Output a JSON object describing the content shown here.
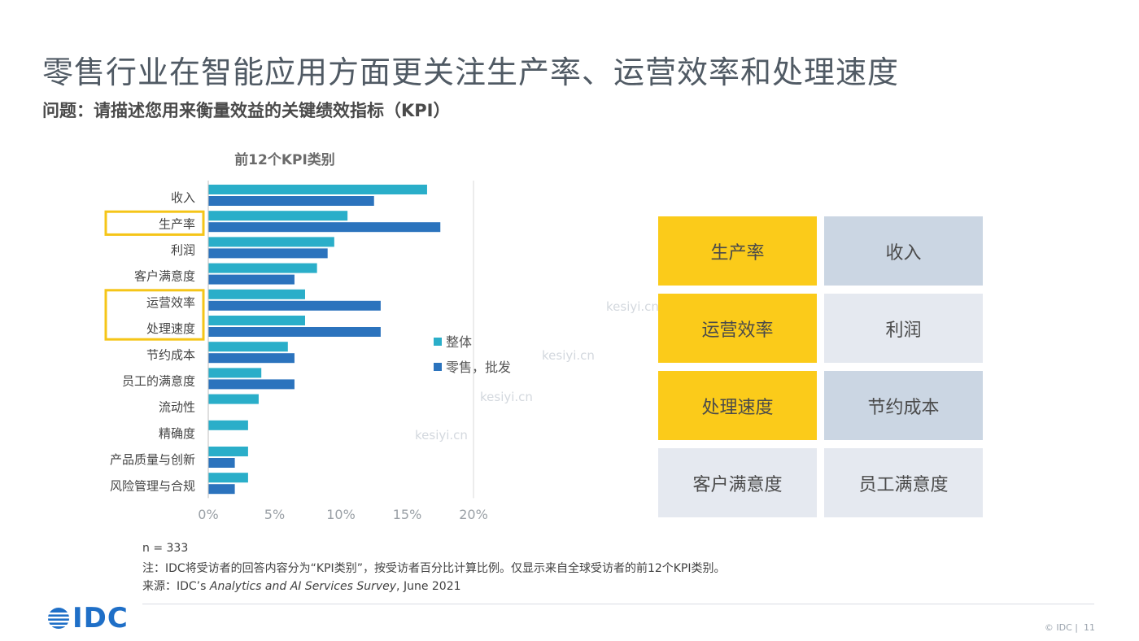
{
  "slide": {
    "title": "零售行业在智能应用方面更关注生产率、运营效率和处理速度",
    "subtitle": "问题：请描述您用来衡量效益的关键绩效指标（KPI）",
    "page_number": "11"
  },
  "chart_data": {
    "type": "bar",
    "orientation": "horizontal",
    "title": "前12个KPI类别",
    "categories": [
      "收入",
      "生产率",
      "利润",
      "客户满意度",
      "运营效率",
      "处理速度",
      "节约成本",
      "员工的满意度",
      "流动性",
      "精确度",
      "产品质量与创新",
      "风险管理与合规"
    ],
    "series": [
      {
        "name": "整体",
        "color": "#2aaec9",
        "values": [
          16.5,
          10.5,
          9.5,
          8.2,
          7.3,
          7.3,
          6.0,
          4.0,
          3.8,
          3.0,
          3.0,
          3.0
        ]
      },
      {
        "name": "零售，批发",
        "color": "#2b73bd",
        "values": [
          12.5,
          17.5,
          9.0,
          6.5,
          13.0,
          13.0,
          6.5,
          6.5,
          null,
          null,
          2.0,
          2.0
        ]
      }
    ],
    "highlighted_categories": [
      [
        "生产率"
      ],
      [
        "运营效率",
        "处理速度"
      ]
    ],
    "highlight_color": "#f5c518",
    "xlim": [
      0,
      20
    ],
    "xticks": [
      "0%",
      "5%",
      "10%",
      "15%",
      "20%"
    ],
    "legend_position": "right"
  },
  "kpi_grid": {
    "tiles": [
      {
        "label": "生产率",
        "style": "highlight"
      },
      {
        "label": "收入",
        "style": "blue"
      },
      {
        "label": "运营效率",
        "style": "highlight"
      },
      {
        "label": "利润",
        "style": "light"
      },
      {
        "label": "处理速度",
        "style": "highlight"
      },
      {
        "label": "节约成本",
        "style": "blue"
      },
      {
        "label": "客户满意度",
        "style": "light"
      },
      {
        "label": "员工满意度",
        "style": "light"
      }
    ],
    "colors": {
      "highlight": "#fbcb1a",
      "blue": "#cbd6e3",
      "light": "#e5e9f0"
    }
  },
  "watermark": "kesiyi.cn",
  "footer": {
    "n": "n = 333",
    "note": "注：IDC将受访者的回答内容分为“KPI类别”，按受访者百分比计算比例。仅显示来自全球受访者的前12个KPI类别。",
    "source_prefix": "来源：IDC’s ",
    "source_title": "Analytics and AI Services Survey",
    "source_suffix": ", June 2021",
    "logo": "IDC",
    "copyright": "© IDC |"
  }
}
